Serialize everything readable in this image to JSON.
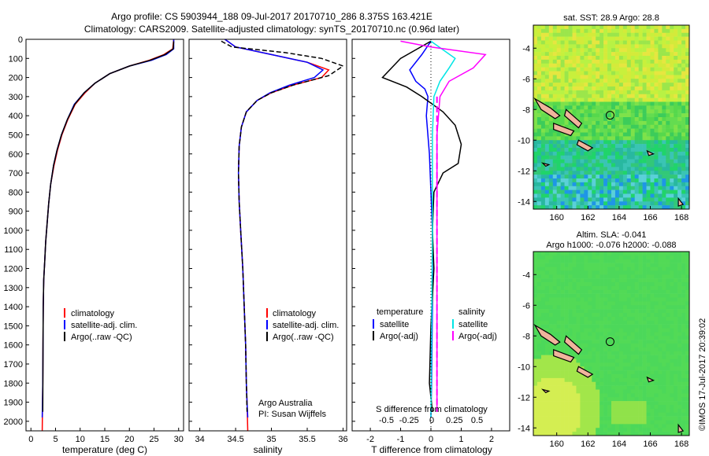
{
  "header": {
    "title_line1": "Argo profile: CS 5903944_188 09-Jul-2017 20170710_286 8.375S 163.421E",
    "title_line2": "Climatology: CARS2009. Satellite-adjusted climatology: synTS_20170710.nc (0.96d later)"
  },
  "colors": {
    "climatology": "#ff0000",
    "satellite": "#0000ff",
    "argo": "#000000",
    "salinity_satellite": "#00e5e5",
    "salinity_argo": "#ff00ff"
  },
  "depth_axis": {
    "range": [
      0,
      2050
    ],
    "ticks": [
      0,
      100,
      200,
      300,
      400,
      500,
      600,
      700,
      800,
      900,
      1000,
      1100,
      1200,
      1300,
      1400,
      1500,
      1600,
      1700,
      1800,
      1900,
      2000
    ]
  },
  "chart_data": [
    {
      "type": "line",
      "id": "temperature",
      "xlabel": "temperature (deg C)",
      "xlim": [
        -1,
        31
      ],
      "xticks": [
        0,
        5,
        10,
        15,
        20,
        25,
        30
      ],
      "ylim": [
        0,
        2050
      ],
      "series": [
        {
          "name": "climatology",
          "color": "#ff0000",
          "x": [
            29.0,
            28.8,
            27,
            24,
            20,
            16,
            13,
            11,
            9,
            7.5,
            6.3,
            5.4,
            4.7,
            4.0,
            3.6,
            3.3,
            3.0,
            2.8,
            2.6,
            2.5,
            2.45,
            2.4,
            2.3
          ],
          "y": [
            0,
            50,
            80,
            110,
            140,
            180,
            230,
            280,
            340,
            420,
            500,
            580,
            660,
            760,
            860,
            960,
            1060,
            1160,
            1260,
            1400,
            1600,
            1800,
            2050
          ]
        },
        {
          "name": "satellite-adj. clim.",
          "color": "#0000ff",
          "x": [
            29.0,
            29.0,
            27.5,
            24.5,
            20,
            16,
            13,
            10.8,
            8.8,
            7.4,
            6.2,
            5.3,
            4.6,
            4.0,
            3.6,
            3.3,
            3.0,
            2.8,
            2.6,
            2.5,
            2.45,
            2.4,
            2.3
          ],
          "y": [
            0,
            50,
            80,
            110,
            140,
            180,
            230,
            280,
            340,
            420,
            500,
            580,
            660,
            760,
            860,
            960,
            1060,
            1160,
            1260,
            1400,
            1600,
            1800,
            1980
          ]
        },
        {
          "name": "Argo(..raw -QC)",
          "color": "#000000",
          "x": [
            29.0,
            28.9,
            27.2,
            24.2,
            20,
            16,
            13,
            10.8,
            8.9,
            7.4,
            6.2,
            5.3,
            4.6,
            4.0,
            3.6,
            3.3,
            3.0,
            2.8,
            2.6,
            2.5,
            2.45,
            2.4
          ],
          "y": [
            10,
            50,
            80,
            110,
            140,
            180,
            230,
            280,
            340,
            420,
            500,
            580,
            660,
            760,
            860,
            960,
            1060,
            1160,
            1260,
            1400,
            1600,
            1950
          ]
        }
      ],
      "legend": [
        "climatology",
        "satellite-adj. clim.",
        "Argo(..raw -QC)"
      ],
      "legend_placement": "lower-center"
    },
    {
      "type": "line",
      "id": "salinity",
      "xlabel": "salinity",
      "xlim": [
        33.85,
        36.05
      ],
      "xticks": [
        34,
        34.5,
        35,
        35.5,
        36
      ],
      "ylim": [
        0,
        2050
      ],
      "series": [
        {
          "name": "climatology",
          "color": "#ff0000",
          "x": [
            34.35,
            34.5,
            35.0,
            35.5,
            35.8,
            35.7,
            35.3,
            35.0,
            34.8,
            34.65,
            34.58,
            34.55,
            34.54,
            34.55,
            34.57,
            34.6,
            34.62,
            34.64,
            34.65,
            34.66,
            34.67
          ],
          "y": [
            0,
            40,
            80,
            120,
            160,
            200,
            240,
            280,
            320,
            380,
            460,
            560,
            700,
            850,
            1000,
            1200,
            1400,
            1600,
            1800,
            1900,
            2050
          ]
        },
        {
          "name": "satellite-adj. clim.",
          "color": "#0000ff",
          "x": [
            34.35,
            34.5,
            35.0,
            35.5,
            35.72,
            35.6,
            35.25,
            34.98,
            34.8,
            34.65,
            34.58,
            34.55,
            34.54,
            34.55,
            34.57,
            34.6,
            34.62,
            34.64,
            34.65,
            34.66,
            34.67
          ],
          "y": [
            0,
            40,
            80,
            120,
            160,
            200,
            240,
            280,
            320,
            380,
            460,
            560,
            700,
            850,
            1000,
            1200,
            1400,
            1600,
            1800,
            1900,
            1980
          ]
        },
        {
          "name": "Argo(..raw -QC)",
          "color": "#000000",
          "x": [
            34.3,
            34.45,
            35.2,
            35.7,
            36.0,
            35.8,
            35.3,
            35.0,
            34.8,
            34.65,
            34.58,
            34.55,
            34.54,
            34.55,
            34.57,
            34.6,
            34.62,
            34.64,
            34.65,
            34.66
          ],
          "y": [
            10,
            40,
            70,
            100,
            140,
            190,
            240,
            280,
            320,
            380,
            460,
            560,
            700,
            850,
            1000,
            1200,
            1400,
            1600,
            1800,
            1950
          ]
        }
      ],
      "legend": [
        "climatology",
        "satellite-adj. clim.",
        "Argo(..raw -QC)"
      ],
      "legend_placement": "lower-center",
      "annotations": [
        "Argo Australia",
        "PI: Susan Wijffels"
      ]
    },
    {
      "type": "line",
      "id": "difference",
      "xlabel": "T difference from climatology",
      "xlabel_top": "S difference from climatology",
      "xlim": [
        -2.6,
        2.6
      ],
      "xticks": [
        -2,
        -1,
        0,
        1,
        2
      ],
      "s_ticks": [
        -0.5,
        -0.25,
        0,
        0.25,
        0.5
      ],
      "s_tick_labels": [
        "-0.5",
        "-0.25",
        "0",
        "0.25",
        "0.5"
      ],
      "ylim": [
        0,
        2050
      ],
      "series": [
        {
          "name": "temperature satellite",
          "color": "#0000ff",
          "x": [
            0.0,
            -0.3,
            -0.7,
            -0.5,
            -0.2,
            -0.1,
            -0.15,
            -0.05,
            0.0,
            0.05,
            0.05,
            0.02,
            0.0
          ],
          "y": [
            10,
            80,
            160,
            220,
            260,
            300,
            400,
            600,
            800,
            1000,
            1400,
            1800,
            1980
          ]
        },
        {
          "name": "temperature Argo(-adj)",
          "color": "#000000",
          "x": [
            0.0,
            -1.0,
            -1.6,
            -0.8,
            -0.3,
            0.4,
            0.8,
            1.0,
            0.9,
            0.4,
            0.1,
            0.05,
            0.1,
            0.0,
            -0.05,
            0.05
          ],
          "y": [
            10,
            100,
            200,
            250,
            300,
            380,
            450,
            550,
            650,
            700,
            800,
            1000,
            1200,
            1500,
            1800,
            1950
          ]
        },
        {
          "name": "salinity satellite",
          "color": "#00e5e5",
          "x": [
            0.0,
            0.8,
            0.6,
            0.3,
            0.1,
            0.05,
            0.05,
            0.0
          ],
          "y": [
            10,
            100,
            150,
            220,
            300,
            500,
            1000,
            1980
          ]
        },
        {
          "name": "salinity Argo(-adj)",
          "color": "#ff00ff",
          "x": [
            -1.0,
            0.0,
            1.8,
            1.4,
            0.6,
            0.3,
            0.2,
            0.2,
            0.2,
            0.2
          ],
          "y": [
            10,
            40,
            80,
            150,
            220,
            300,
            500,
            1000,
            1500,
            1950
          ]
        }
      ],
      "legend_groups": [
        {
          "heading": "temperature",
          "items": [
            "satellite",
            "Argo(-adj)"
          ]
        },
        {
          "heading": "salinity",
          "items": [
            "satellite",
            "Argo(-adj)"
          ]
        }
      ]
    },
    {
      "type": "heatmap",
      "id": "sst_map",
      "title": "sat. SST: 28.9 Argo: 28.8",
      "xlim": [
        158.5,
        168.5
      ],
      "ylim": [
        -14.5,
        -2.5
      ],
      "xticks": [
        160,
        162,
        164,
        166,
        168
      ],
      "yticks": [
        -4,
        -6,
        -8,
        -10,
        -12,
        -14
      ],
      "float_position": [
        163.421,
        -8.375
      ]
    },
    {
      "type": "heatmap",
      "id": "sla_map",
      "title_line1": "Altim. SLA: -0.041",
      "title_line2": "Argo h1000: -0.076 h2000: -0.088",
      "xlim": [
        158.5,
        168.5
      ],
      "ylim": [
        -14.5,
        -2.5
      ],
      "xticks": [
        160,
        162,
        164,
        166,
        168
      ],
      "yticks": [
        -4,
        -6,
        -8,
        -10,
        -12,
        -14
      ],
      "float_position": [
        163.421,
        -8.375
      ]
    }
  ],
  "legend_labels": {
    "climatology": "climatology",
    "satellite_adj": "satellite-adj. clim.",
    "argo_raw": "Argo(..raw -QC)",
    "temperature": "temperature",
    "salinity": "salinity",
    "satellite": "satellite",
    "argo_adj": "Argo(-adj)"
  },
  "credit": "Argo Australia",
  "pi": "PI: Susan Wijffels",
  "watermark": "©IMOS 17-Jul-2017 20:39:02"
}
